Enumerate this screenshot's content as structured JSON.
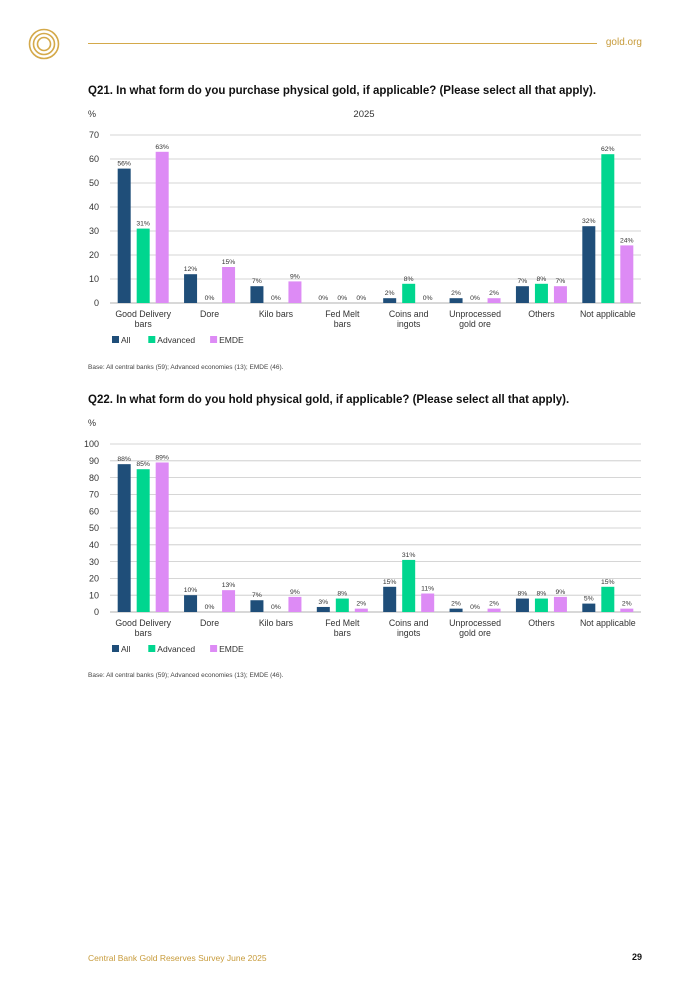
{
  "header": {
    "site": "gold.org"
  },
  "footer": {
    "title": "Central Bank Gold Reserves Survey June 2025",
    "page": "29"
  },
  "colors": {
    "gold": "#c79b3b",
    "All": "#1f4e79",
    "Advanced": "#00d68f",
    "EMDE": "#dd8bf5"
  },
  "chart_data": [
    {
      "type": "bar",
      "title": "Q21. In what form do you purchase physical gold, if applicable? (Please select all that apply).",
      "subtitle": "2025",
      "ylabel": "%",
      "ylim": [
        0,
        70
      ],
      "yticks": [
        0,
        10,
        20,
        30,
        40,
        50,
        60,
        70
      ],
      "categories": [
        [
          "Good Delivery",
          "bars"
        ],
        [
          "Dore"
        ],
        [
          "Kilo bars"
        ],
        [
          "Fed Melt",
          "bars"
        ],
        [
          "Coins and",
          "ingots"
        ],
        [
          "Unprocessed",
          "gold ore"
        ],
        [
          "Others"
        ],
        [
          "Not applicable"
        ]
      ],
      "series": [
        {
          "name": "All",
          "values": [
            56,
            12,
            7,
            0,
            2,
            2,
            7,
            32
          ],
          "labels": [
            "56%",
            "12%",
            "7%",
            "0%",
            "2%",
            "2%",
            "7%",
            "32%"
          ]
        },
        {
          "name": "Advanced",
          "values": [
            31,
            0,
            0,
            0,
            8,
            0,
            8,
            62
          ],
          "labels": [
            "31%",
            "0%",
            "0%",
            "0%",
            "8%",
            "0%",
            "8%",
            "62%"
          ]
        },
        {
          "name": "EMDE",
          "values": [
            63,
            15,
            9,
            0,
            0,
            2,
            7,
            24
          ],
          "labels": [
            "63%",
            "15%",
            "9%",
            "0%",
            "0%",
            "2%",
            "7%",
            "24%"
          ]
        }
      ],
      "legend": "bottom-left",
      "grid": true,
      "base": "Base: All central banks (59); Advanced economies (13); EMDE (46)."
    },
    {
      "type": "bar",
      "title": "Q22. In what form do you hold physical gold, if applicable? (Please select all that apply).",
      "subtitle": "",
      "ylabel": "%",
      "ylim": [
        0,
        100
      ],
      "yticks": [
        0,
        10,
        20,
        30,
        40,
        50,
        60,
        70,
        80,
        90,
        100
      ],
      "categories": [
        [
          "Good Delivery",
          "bars"
        ],
        [
          "Dore"
        ],
        [
          "Kilo bars"
        ],
        [
          "Fed Melt",
          "bars"
        ],
        [
          "Coins and",
          "ingots"
        ],
        [
          "Unprocessed",
          "gold ore"
        ],
        [
          "Others"
        ],
        [
          "Not applicable"
        ]
      ],
      "series": [
        {
          "name": "All",
          "values": [
            88,
            10,
            7,
            3,
            15,
            2,
            8,
            5
          ],
          "labels": [
            "88%",
            "10%",
            "7%",
            "3%",
            "15%",
            "2%",
            "8%",
            "5%"
          ]
        },
        {
          "name": "Advanced",
          "values": [
            85,
            0,
            0,
            8,
            31,
            0,
            8,
            15
          ],
          "labels": [
            "85%",
            "0%",
            "0%",
            "8%",
            "31%",
            "0%",
            "8%",
            "15%"
          ]
        },
        {
          "name": "EMDE",
          "values": [
            89,
            13,
            9,
            2,
            11,
            2,
            9,
            2
          ],
          "labels": [
            "89%",
            "13%",
            "9%",
            "2%",
            "11%",
            "2%",
            "9%",
            "2%"
          ]
        }
      ],
      "legend": "bottom-left",
      "grid": true,
      "base": "Base: All central banks (59); Advanced economies (13); EMDE (46)."
    }
  ]
}
